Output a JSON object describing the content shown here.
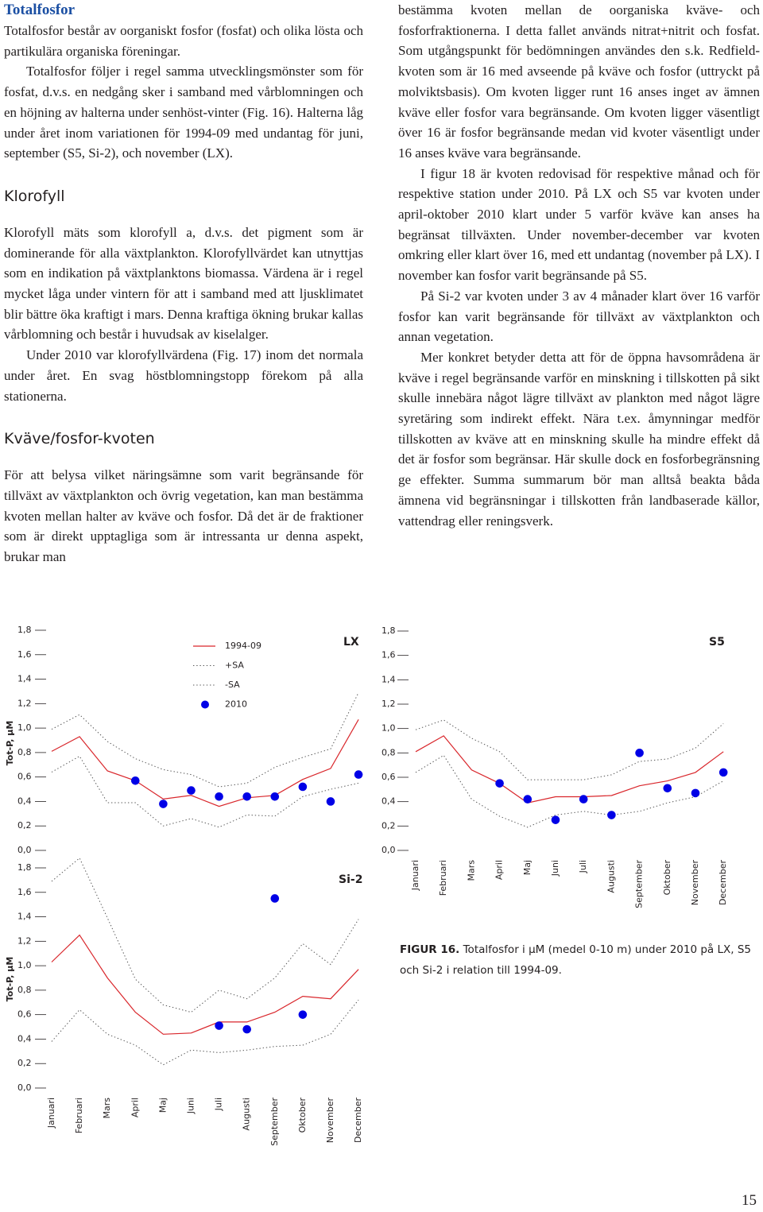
{
  "sections": [
    {
      "heading": "Totalfosfor",
      "paragraphs": [
        "Totalfosfor består av oorganiskt fosfor (fosfat) och olika lösta och partikulära organiska föreningar.",
        "Totalfosfor följer i regel samma utvecklingsmönster som för fosfat, d.v.s. en nedgång sker i samband med vårblomningen och en höjning av halterna under senhöst-vinter (Fig. 16). Halterna låg under året inom variationen för 1994-09 med undantag för juni, september (S5, Si-2), och november (LX)."
      ]
    },
    {
      "heading": "Klorofyll",
      "paragraphs": [
        "Klorofyll mäts som klorofyll a, d.v.s. det pigment som är dominerande för alla växtplankton. Klorofyllvärdet kan utnyttjas som en indikation på växtplanktons biomassa. Värdena är i regel mycket låga under vintern för att i samband med att ljusklimatet blir bättre öka kraftigt i mars. Denna kraftiga ökning brukar kallas vårblomning och består i huvudsak av kiselalger.",
        "Under 2010 var klorofyllvärdena (Fig. 17) inom det normala under året. En svag höstblomningstopp förekom på alla stationerna."
      ]
    },
    {
      "heading": "Kväve/fosfor-kvoten",
      "paragraphs": [
        "För att belysa vilket näringsämne som varit begränsande för tillväxt av växtplankton och övrig vegetation, kan man bestämma kvoten mellan halter av kväve och fosfor. Då det är de fraktioner som är direkt upptagliga som är intressanta ur denna aspekt, brukar man"
      ]
    }
  ],
  "right_column": {
    "paragraphs": [
      "bestämma kvoten mellan de oorganiska kväve- och fosforfraktionerna. I detta fallet används nitrat+nitrit och fosfat. Som utgångspunkt för bedömningen användes den s.k. Redfield-kvoten som är 16 med avseende på kväve och fosfor (uttryckt på molviktsbasis). Om kvoten ligger runt 16 anses inget av ämnen kväve eller fosfor vara begränsande. Om kvoten ligger väsentligt över 16 är fosfor begränsande medan vid kvoter väsentligt under 16 anses kväve vara begränsande.",
      "I figur 18 är kvoten redovisad för respektive månad och för respektive station under 2010. På LX och S5 var kvoten under april-oktober 2010 klart under 5 varför kväve kan anses ha begränsat tillväxten. Under november-december var kvoten omkring eller klart över 16, med ett undantag (november på LX). I november kan fosfor varit begränsande på S5.",
      "På Si-2 var kvoten under 3 av 4 månader klart över 16 varför fosfor kan varit begränsande för tillväxt av växtplankton och annan vegetation.",
      "Mer konkret betyder detta att för de öppna havsområdena är kväve i regel begränsande varför en minskning i tillskotten på sikt skulle innebära något lägre tillväxt av plankton med något lägre syretäring som indirekt effekt. Nära t.ex. åmynningar medför tillskotten av kväve att en minskning skulle ha mindre effekt då det är fosfor som begränsar. Här skulle dock en fosforbegränsning ge effekter. Summa summarum bör man alltså beakta båda ämnena vid begränsningar i tillskotten från landbaserade källor, vattendrag eller reningsverk."
    ]
  },
  "figure_caption": {
    "label": "FIGUR 16.",
    "text": "Totalfosfor i µM (medel 0-10 m) under 2010 på LX, S5 och Si-2 i relation till 1994-09."
  },
  "page_number": 15,
  "chart_data": [
    {
      "type": "line",
      "title": "LX",
      "ylabel": "Tot-P, µM",
      "legend": "top",
      "ylim": [
        0,
        1.8
      ],
      "yticks": [
        {
          "value": 0,
          "label": "0,0"
        },
        {
          "value": 0.2,
          "label": "0,2"
        },
        {
          "value": 0.4,
          "label": "0,4"
        },
        {
          "value": 0.6,
          "label": "0,6"
        },
        {
          "value": 0.8,
          "label": "0,8"
        },
        {
          "value": 1.0,
          "label": "1,0"
        },
        {
          "value": 1.2,
          "label": "1,2"
        },
        {
          "value": 1.4,
          "label": "1,4"
        },
        {
          "value": 1.6,
          "label": "1,6"
        },
        {
          "value": 1.8,
          "label": "1,8"
        }
      ],
      "series": [
        {
          "name": "1994-09",
          "color": "#d9262b",
          "style": "solid",
          "values": [
            0.81,
            0.93,
            0.65,
            0.57,
            0.42,
            0.45,
            0.36,
            0.43,
            0.45,
            0.58,
            0.67,
            1.07
          ]
        },
        {
          "name": "+SA",
          "color": "#555555",
          "style": "dotted",
          "values": [
            0.99,
            1.11,
            0.89,
            0.75,
            0.66,
            0.62,
            0.52,
            0.55,
            0.68,
            0.76,
            0.83,
            1.29
          ]
        },
        {
          "name": "-SA",
          "color": "#555555",
          "style": "dotted",
          "values": [
            0.64,
            0.77,
            0.39,
            0.39,
            0.2,
            0.26,
            0.19,
            0.29,
            0.28,
            0.44,
            0.5,
            0.55
          ]
        },
        {
          "name": "2010",
          "color": "#0000e6",
          "style": "markers",
          "values": [
            null,
            null,
            null,
            0.57,
            0.38,
            0.49,
            0.44,
            0.44,
            0.44,
            0.52,
            0.4,
            0.62
          ]
        }
      ]
    },
    {
      "type": "line",
      "title": "S5",
      "categories": [
        "Januari",
        "Februari",
        "Mars",
        "April",
        "Maj",
        "Juni",
        "Juli",
        "Augusti",
        "September",
        "Oktober",
        "November",
        "December"
      ],
      "ylim": [
        0,
        1.8
      ],
      "yticks": [
        {
          "value": 0,
          "label": "0,0"
        },
        {
          "value": 0.2,
          "label": "0,2"
        },
        {
          "value": 0.4,
          "label": "0,4"
        },
        {
          "value": 0.6,
          "label": "0,6"
        },
        {
          "value": 0.8,
          "label": "0,8"
        },
        {
          "value": 1.0,
          "label": "1,0"
        },
        {
          "value": 1.2,
          "label": "1,2"
        },
        {
          "value": 1.4,
          "label": "1,4"
        },
        {
          "value": 1.6,
          "label": "1,6"
        },
        {
          "value": 1.8,
          "label": "1,8"
        }
      ],
      "series": [
        {
          "name": "1994-09",
          "color": "#d9262b",
          "style": "solid",
          "values": [
            0.81,
            0.94,
            0.66,
            0.55,
            0.39,
            0.44,
            0.44,
            0.45,
            0.53,
            0.57,
            0.64,
            0.81
          ]
        },
        {
          "name": "+SA",
          "color": "#555555",
          "style": "dotted",
          "values": [
            0.99,
            1.07,
            0.92,
            0.81,
            0.58,
            0.58,
            0.58,
            0.62,
            0.73,
            0.75,
            0.84,
            1.04
          ]
        },
        {
          "name": "-SA",
          "color": "#555555",
          "style": "dotted",
          "values": [
            0.64,
            0.78,
            0.42,
            0.28,
            0.19,
            0.29,
            0.32,
            0.29,
            0.32,
            0.39,
            0.44,
            0.57
          ]
        },
        {
          "name": "2010",
          "color": "#0000e6",
          "style": "markers",
          "values": [
            null,
            null,
            null,
            0.55,
            0.42,
            0.25,
            0.42,
            0.29,
            0.8,
            0.51,
            0.47,
            0.64
          ]
        }
      ]
    },
    {
      "type": "line",
      "title": "Si-2",
      "ylabel": "Tot-P, µM",
      "categories": [
        "Januari",
        "Februari",
        "Mars",
        "April",
        "Maj",
        "Juni",
        "Juli",
        "Augusti",
        "September",
        "Oktober",
        "November",
        "December"
      ],
      "ylim": [
        0,
        1.8
      ],
      "yticks": [
        {
          "value": 0,
          "label": "0,0"
        },
        {
          "value": 0.2,
          "label": "0,2"
        },
        {
          "value": 0.4,
          "label": "0,4"
        },
        {
          "value": 0.6,
          "label": "0,6"
        },
        {
          "value": 0.8,
          "label": "0,8"
        },
        {
          "value": 1.0,
          "label": "1,0"
        },
        {
          "value": 1.2,
          "label": "1,2"
        },
        {
          "value": 1.4,
          "label": "1,4"
        },
        {
          "value": 1.6,
          "label": "1,6"
        },
        {
          "value": 1.8,
          "label": "1,8"
        }
      ],
      "series": [
        {
          "name": "1994-09",
          "color": "#d9262b",
          "style": "solid",
          "values": [
            1.03,
            1.25,
            0.9,
            0.62,
            0.44,
            0.45,
            0.54,
            0.54,
            0.62,
            0.75,
            0.73,
            0.97
          ]
        },
        {
          "name": "+SA",
          "color": "#555555",
          "style": "dotted",
          "values": [
            1.69,
            1.88,
            1.39,
            0.89,
            0.68,
            0.62,
            0.8,
            0.73,
            0.9,
            1.18,
            1.01,
            1.38
          ]
        },
        {
          "name": "-SA",
          "color": "#555555",
          "style": "dotted",
          "values": [
            0.38,
            0.64,
            0.44,
            0.35,
            0.19,
            0.31,
            0.29,
            0.31,
            0.34,
            0.35,
            0.44,
            0.72
          ]
        },
        {
          "name": "2010",
          "color": "#0000e6",
          "style": "markers",
          "values": [
            null,
            null,
            null,
            null,
            null,
            null,
            0.51,
            0.48,
            1.55,
            0.6,
            null,
            null
          ]
        }
      ]
    }
  ]
}
